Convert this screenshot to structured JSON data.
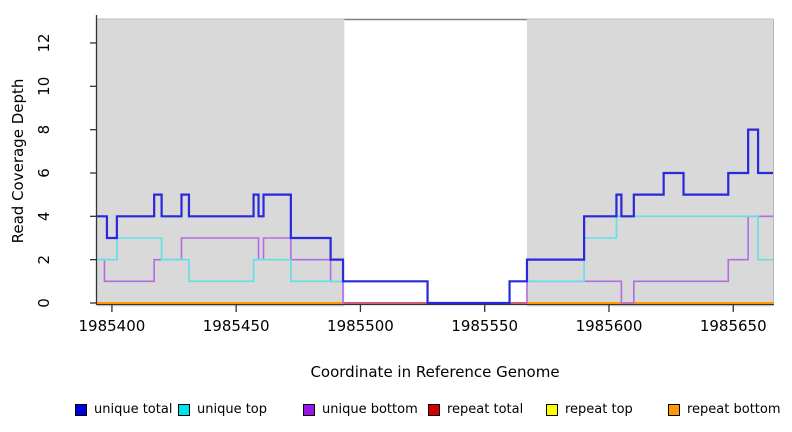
{
  "figure": {
    "y_axis_label": "Read Coverage Depth",
    "x_axis_label": "Coordinate in Reference Genome"
  },
  "chart_data": {
    "type": "line",
    "subtype": "step-coverage-plot",
    "title": "",
    "xlabel": "Coordinate in Reference Genome",
    "ylabel": "Read Coverage Depth",
    "x_domain": [
      1985394,
      1985666
    ],
    "y_domain": [
      0,
      13.06
    ],
    "x_ticks": [
      1985400,
      1985450,
      1985500,
      1985550,
      1985600,
      1985650
    ],
    "y_ticks": [
      0,
      2,
      4,
      6,
      8,
      10,
      12
    ],
    "grid": "off",
    "shaded_regions": [
      {
        "from": 1985394,
        "to": 1985493.5,
        "color": "#d9d9d9"
      },
      {
        "from": 1985567,
        "to": 1985666,
        "color": "#d9d9d9"
      }
    ],
    "gap_baseline_overlay": {
      "from": 1985493.5,
      "to": 1985567,
      "value": 0,
      "color": "#c9527b"
    },
    "series": [
      {
        "name": "repeat total",
        "color": "#d40000",
        "width": 1.4,
        "points": [
          [
            1985394,
            0
          ],
          [
            1985666,
            0
          ]
        ]
      },
      {
        "name": "repeat top",
        "color": "#ffff00",
        "width": 1.4,
        "points": [
          [
            1985394,
            0
          ],
          [
            1985666,
            0
          ]
        ]
      },
      {
        "name": "repeat bottom",
        "color": "#ff9702",
        "width": 2,
        "points": [
          [
            1985394,
            0
          ],
          [
            1985666,
            0
          ]
        ]
      },
      {
        "name": "unique bottom",
        "color": "#b26ce2",
        "width": 1.6,
        "points": [
          [
            1985394,
            2
          ],
          [
            1985397,
            1
          ],
          [
            1985417,
            2
          ],
          [
            1985428,
            3
          ],
          [
            1985459,
            2
          ],
          [
            1985461,
            3
          ],
          [
            1985472,
            2
          ],
          [
            1985488,
            1
          ],
          [
            1985493,
            0
          ],
          [
            1985567,
            1
          ],
          [
            1985605,
            0
          ],
          [
            1985610,
            1
          ],
          [
            1985648,
            2
          ],
          [
            1985656,
            4
          ],
          [
            1985666,
            4
          ]
        ]
      },
      {
        "name": "unique top",
        "color": "#62dfe7",
        "width": 1.6,
        "points": [
          [
            1985394,
            2
          ],
          [
            1985402,
            3
          ],
          [
            1985420,
            2
          ],
          [
            1985431,
            1
          ],
          [
            1985457,
            2
          ],
          [
            1985472,
            1
          ],
          [
            1985527,
            0
          ],
          [
            1985560,
            1
          ],
          [
            1985590,
            3
          ],
          [
            1985603,
            4
          ],
          [
            1985660,
            2
          ],
          [
            1985666,
            2
          ]
        ]
      },
      {
        "name": "unique total",
        "color": "#2828dc",
        "width": 2.2,
        "points": [
          [
            1985394,
            4
          ],
          [
            1985398,
            3
          ],
          [
            1985402,
            4
          ],
          [
            1985417,
            5
          ],
          [
            1985420,
            4
          ],
          [
            1985428,
            5
          ],
          [
            1985431,
            4
          ],
          [
            1985457,
            5
          ],
          [
            1985459,
            4
          ],
          [
            1985461,
            5
          ],
          [
            1985472,
            3
          ],
          [
            1985488,
            2
          ],
          [
            1985493,
            1
          ],
          [
            1985527,
            0
          ],
          [
            1985560,
            1
          ],
          [
            1985567,
            2
          ],
          [
            1985590,
            4
          ],
          [
            1985603,
            5
          ],
          [
            1985605,
            4
          ],
          [
            1985610,
            5
          ],
          [
            1985622,
            6
          ],
          [
            1985630,
            5
          ],
          [
            1985648,
            6
          ],
          [
            1985656,
            8
          ],
          [
            1985660,
            6
          ],
          [
            1985666,
            6
          ]
        ]
      }
    ]
  },
  "legend": {
    "items": [
      {
        "label": "unique total",
        "color": "#0000d8"
      },
      {
        "label": "unique top",
        "color": "#00e0e8"
      },
      {
        "label": "unique bottom",
        "color": "#9a15e8"
      },
      {
        "label": "repeat total",
        "color": "#d40000"
      },
      {
        "label": "repeat top",
        "color": "#ffff00"
      },
      {
        "label": "repeat bottom",
        "color": "#ff9702"
      }
    ]
  },
  "style": {
    "shade_color": "#d9d9d9",
    "axis_color": "#333333",
    "border_color": "#808080",
    "text_color": "#000000"
  }
}
